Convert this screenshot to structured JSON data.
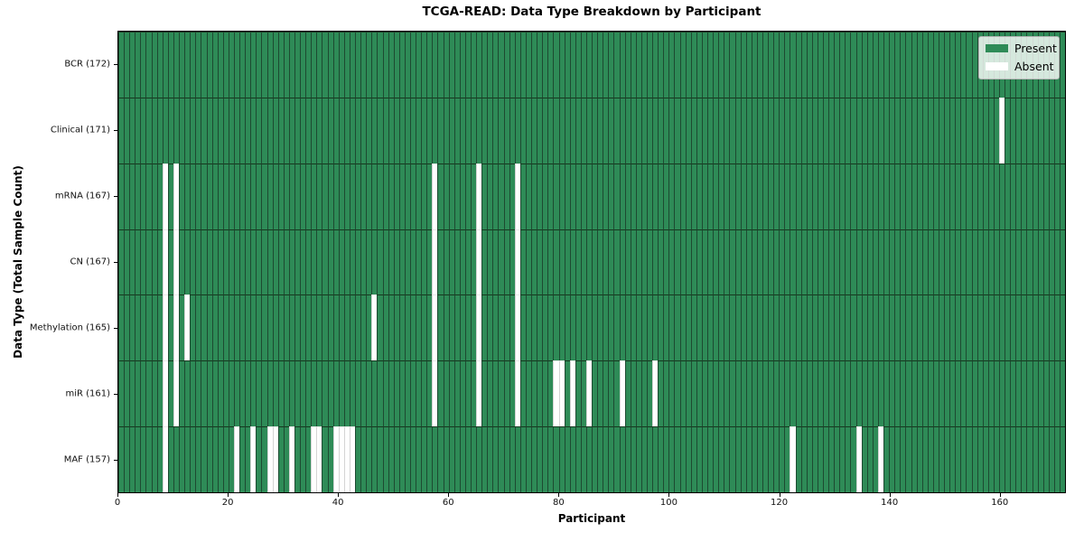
{
  "colors": {
    "present": "#2e8b57",
    "absent": "#ffffff",
    "cell_border": "#1d4a31",
    "row_separator": "#16381f"
  },
  "chart_data": {
    "type": "heatmap",
    "title": "TCGA-READ: Data Type Breakdown by Participant",
    "xlabel": "Participant",
    "ylabel": "Data Type (Total Sample Count)",
    "n_participants": 172,
    "x_range": [
      0,
      172
    ],
    "x_ticks": [
      0,
      20,
      40,
      60,
      80,
      100,
      120,
      140,
      160
    ],
    "grid": false,
    "legend": [
      "Present",
      "Absent"
    ],
    "legend_position": "upper right",
    "value_encoding": "green cell = data type present for participant, white cell = absent",
    "rows": [
      {
        "label": "BCR (172)",
        "data_type": "BCR",
        "present_count": 172,
        "absent_participants": []
      },
      {
        "label": "Clinical (171)",
        "data_type": "Clinical",
        "present_count": 171,
        "absent_participants": [
          160
        ]
      },
      {
        "label": "mRNA (167)",
        "data_type": "mRNA",
        "present_count": 167,
        "absent_participants": [
          8,
          10,
          57,
          65,
          72
        ]
      },
      {
        "label": "CN (167)",
        "data_type": "CN",
        "present_count": 167,
        "absent_participants": [
          8,
          10,
          57,
          65,
          72
        ]
      },
      {
        "label": "Methylation (165)",
        "data_type": "Methylation",
        "present_count": 165,
        "absent_participants": [
          8,
          10,
          12,
          46,
          57,
          65,
          72
        ]
      },
      {
        "label": "miR (161)",
        "data_type": "miR",
        "present_count": 161,
        "absent_participants": [
          8,
          10,
          57,
          65,
          72,
          79,
          80,
          82,
          85,
          91,
          97
        ]
      },
      {
        "label": "MAF (157)",
        "data_type": "MAF",
        "present_count": 157,
        "absent_participants": [
          8,
          21,
          24,
          27,
          28,
          31,
          35,
          36,
          39,
          40,
          41,
          42,
          122,
          134,
          138
        ]
      }
    ]
  }
}
